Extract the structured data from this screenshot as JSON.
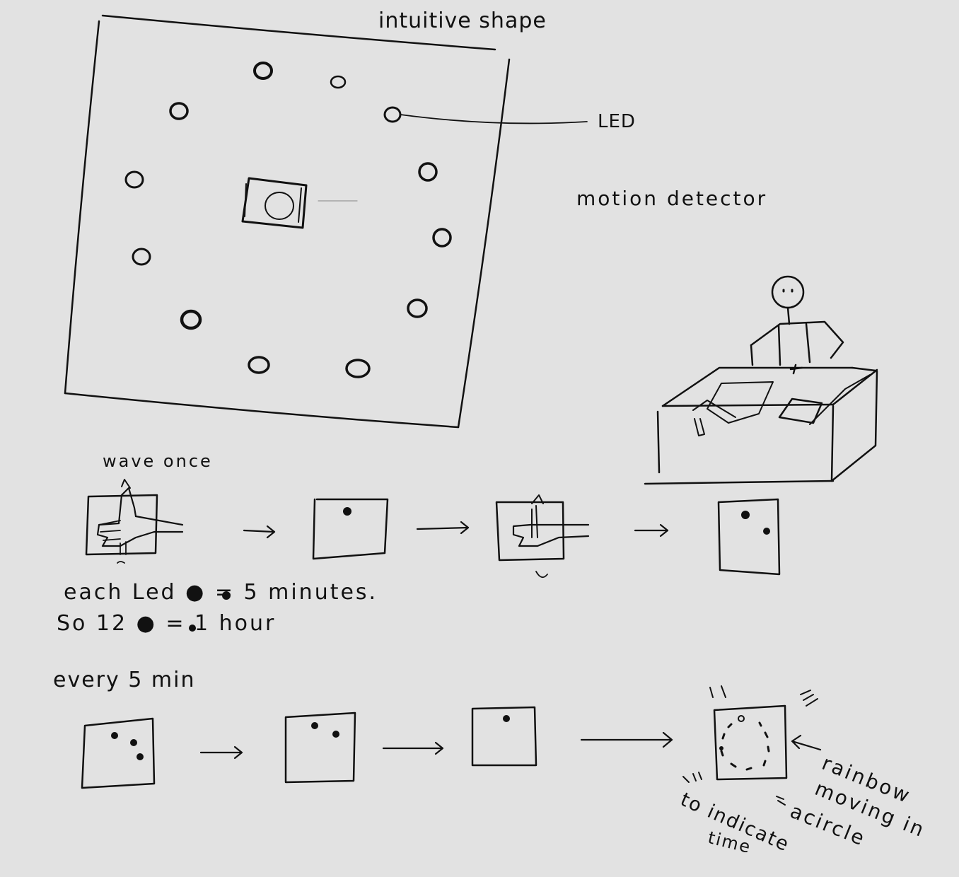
{
  "labels": {
    "title": "intuitive shape",
    "led": "LED",
    "motion_detector": "motion detector",
    "wave_once": "wave once",
    "each_led": "each Led ● = 5 minutes.",
    "so_12": "So 12 ● = 1 hour",
    "every_5_min": "every 5 min",
    "rainbow": "rainbow",
    "moving_in": "moving in",
    "a_circle": "acircle",
    "to_indicate": "to indicate",
    "time": "time"
  },
  "sequences": {
    "wave_sequence": [
      "hand-wave",
      "1 led lit",
      "hand-wave",
      "2 leds lit"
    ],
    "every_5_min_sequence": [
      "3 leds lit",
      "2 leds lit",
      "1 led lit",
      "rainbow circle"
    ]
  },
  "colors": {
    "paper": "#e2e2e2",
    "ink": "#111111"
  }
}
